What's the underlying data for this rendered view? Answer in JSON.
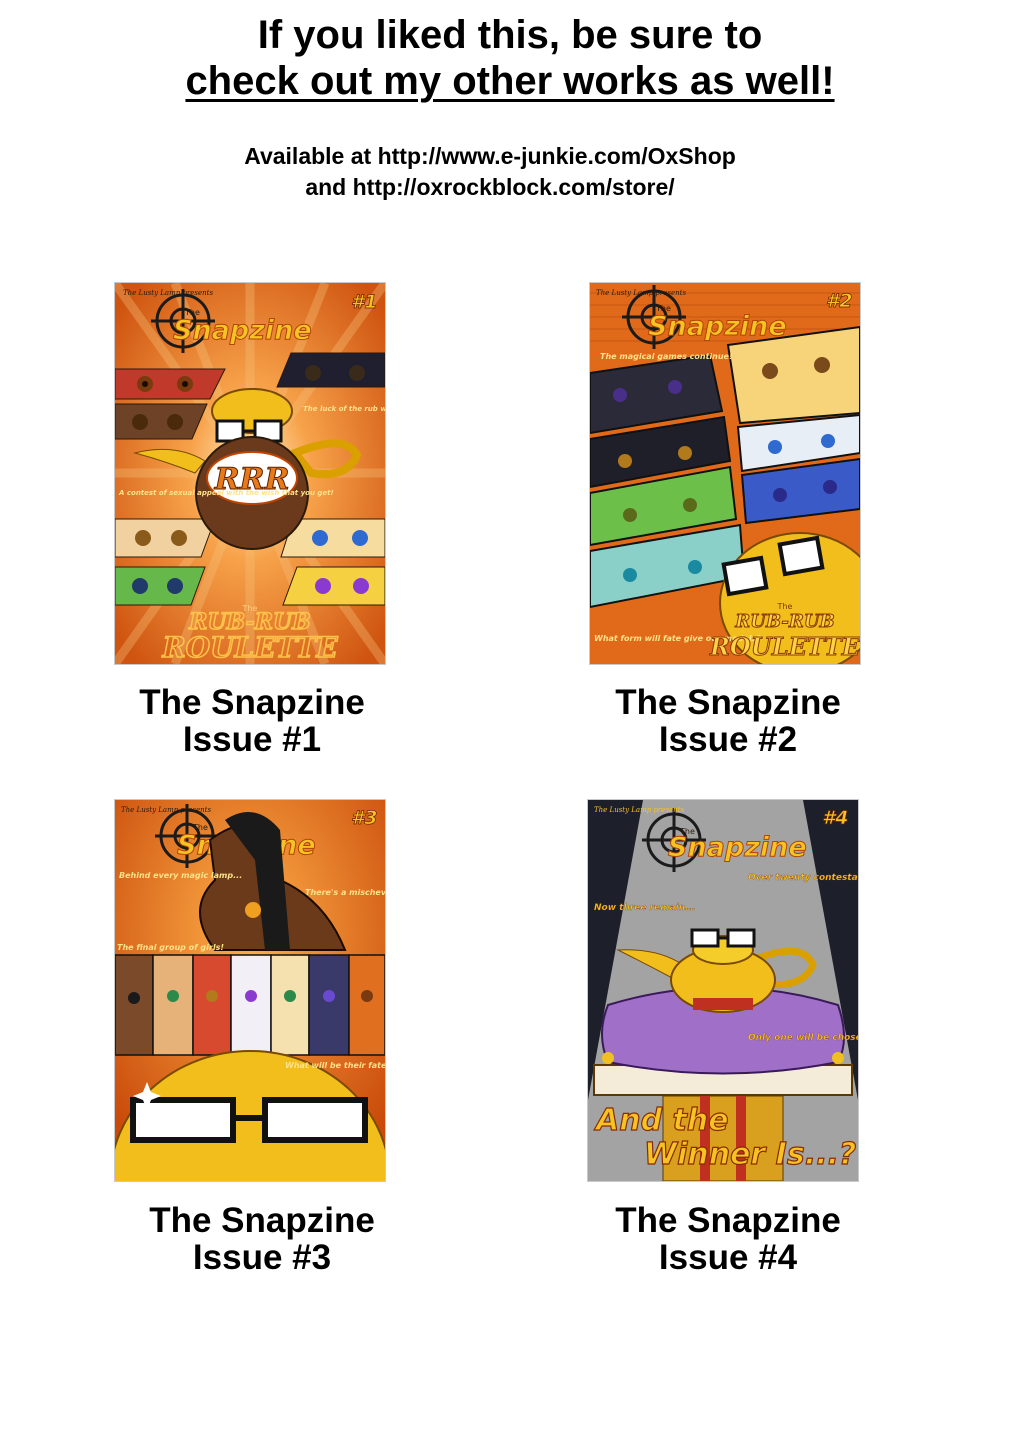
{
  "header": {
    "line1": "If you liked this, be sure to",
    "line2": "check out my other works as well!"
  },
  "availability": {
    "line1": "Available at http://www.e-junkie.com/OxShop",
    "line2": "and http://oxrockblock.com/store/"
  },
  "colors": {
    "cover_orange": "#e8731f",
    "cover_gold": "#f0c020",
    "cover_dark": "#1d1f2b",
    "cover_gray": "#9a9a9a",
    "pillow_purple": "#a070c8"
  },
  "works": [
    {
      "title": "The Snapzine",
      "issue": "Issue #1",
      "cover": {
        "issue_mark": "#1",
        "publisher": "The Lusty Lamp presents",
        "logo_prefix": "The",
        "logo": "Snapzine",
        "emblem": "RRR",
        "blurbs": [
          "The luck of the rub will determine your figure!",
          "A contest of sexual appeal with the wish that you get!"
        ],
        "series_small": "The",
        "series_line1": "RUB-RUB",
        "series_line2": "ROULETTE"
      }
    },
    {
      "title": "The Snapzine",
      "issue": "Issue #2",
      "cover": {
        "issue_mark": "#2",
        "publisher": "The Lusty Lamp presents",
        "logo_prefix": "The",
        "logo": "Snapzine",
        "blurbs": [
          "The magical games continue!",
          "What form will fate give our models?"
        ],
        "series_small": "The",
        "series_line1": "RUB-RUB",
        "series_line2": "ROULETTE"
      }
    },
    {
      "title": "The Snapzine",
      "issue": "Issue #3",
      "cover": {
        "issue_mark": "#3",
        "publisher": "The Lusty Lamp presents",
        "logo_prefix": "The",
        "logo": "Snapzine",
        "blurbs": [
          "Behind every magic lamp...",
          "There's a mischevious genie.",
          "The final group of girls!",
          "What will be their fate?!"
        ]
      }
    },
    {
      "title": "The Snapzine",
      "issue": "Issue #4",
      "cover": {
        "issue_mark": "#4",
        "publisher": "The Lusty Lamp presents",
        "logo_prefix": "The",
        "logo": "Snapzine",
        "blurbs": [
          "Over twenty contestants...",
          "Now three remain...",
          "Only one will be chosen..."
        ],
        "tag_line1": "And the",
        "tag_line2": "Winner Is...?"
      }
    }
  ]
}
